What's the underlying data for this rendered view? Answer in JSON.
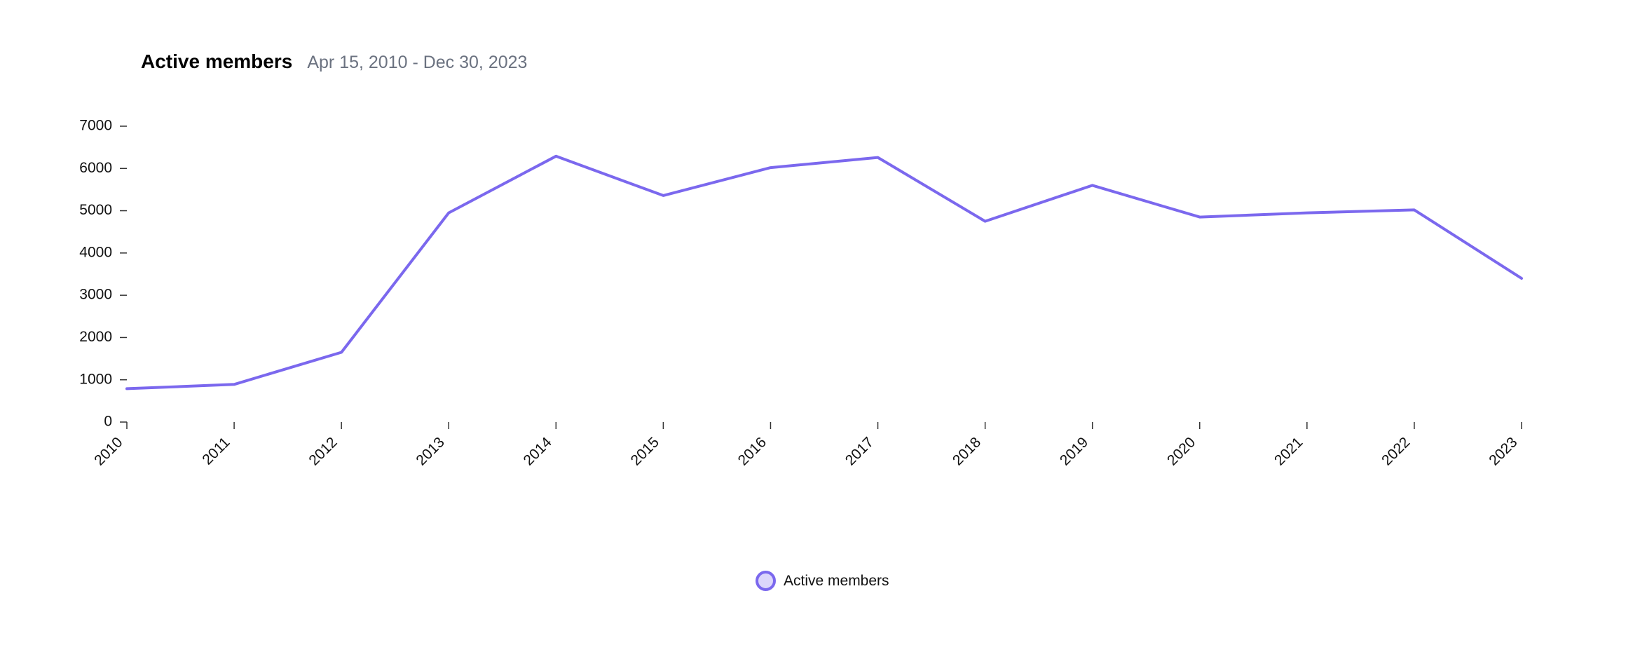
{
  "chart_data": {
    "type": "line",
    "title": "Active members",
    "subtitle": "Apr 15, 2010 - Dec 30, 2023",
    "xlabel": "",
    "ylabel": "",
    "x": [
      "2010",
      "2011",
      "2012",
      "2013",
      "2014",
      "2015",
      "2016",
      "2017",
      "2018",
      "2019",
      "2020",
      "2021",
      "2022",
      "2023"
    ],
    "series": [
      {
        "name": "Active members",
        "values": [
          790,
          890,
          1650,
          4950,
          6290,
          5360,
          6020,
          6260,
          4750,
          5600,
          4850,
          4950,
          5020,
          3400
        ]
      }
    ],
    "ylim": [
      0,
      7000
    ],
    "yticks": [
      0,
      1000,
      2000,
      3000,
      4000,
      5000,
      6000,
      7000
    ],
    "grid": false,
    "legend_position": "bottom-center",
    "colors": {
      "line": "#7b68ee",
      "legend_fill": "#dcd6fb",
      "axis": "#333333",
      "subtitle": "#6b7280"
    }
  }
}
